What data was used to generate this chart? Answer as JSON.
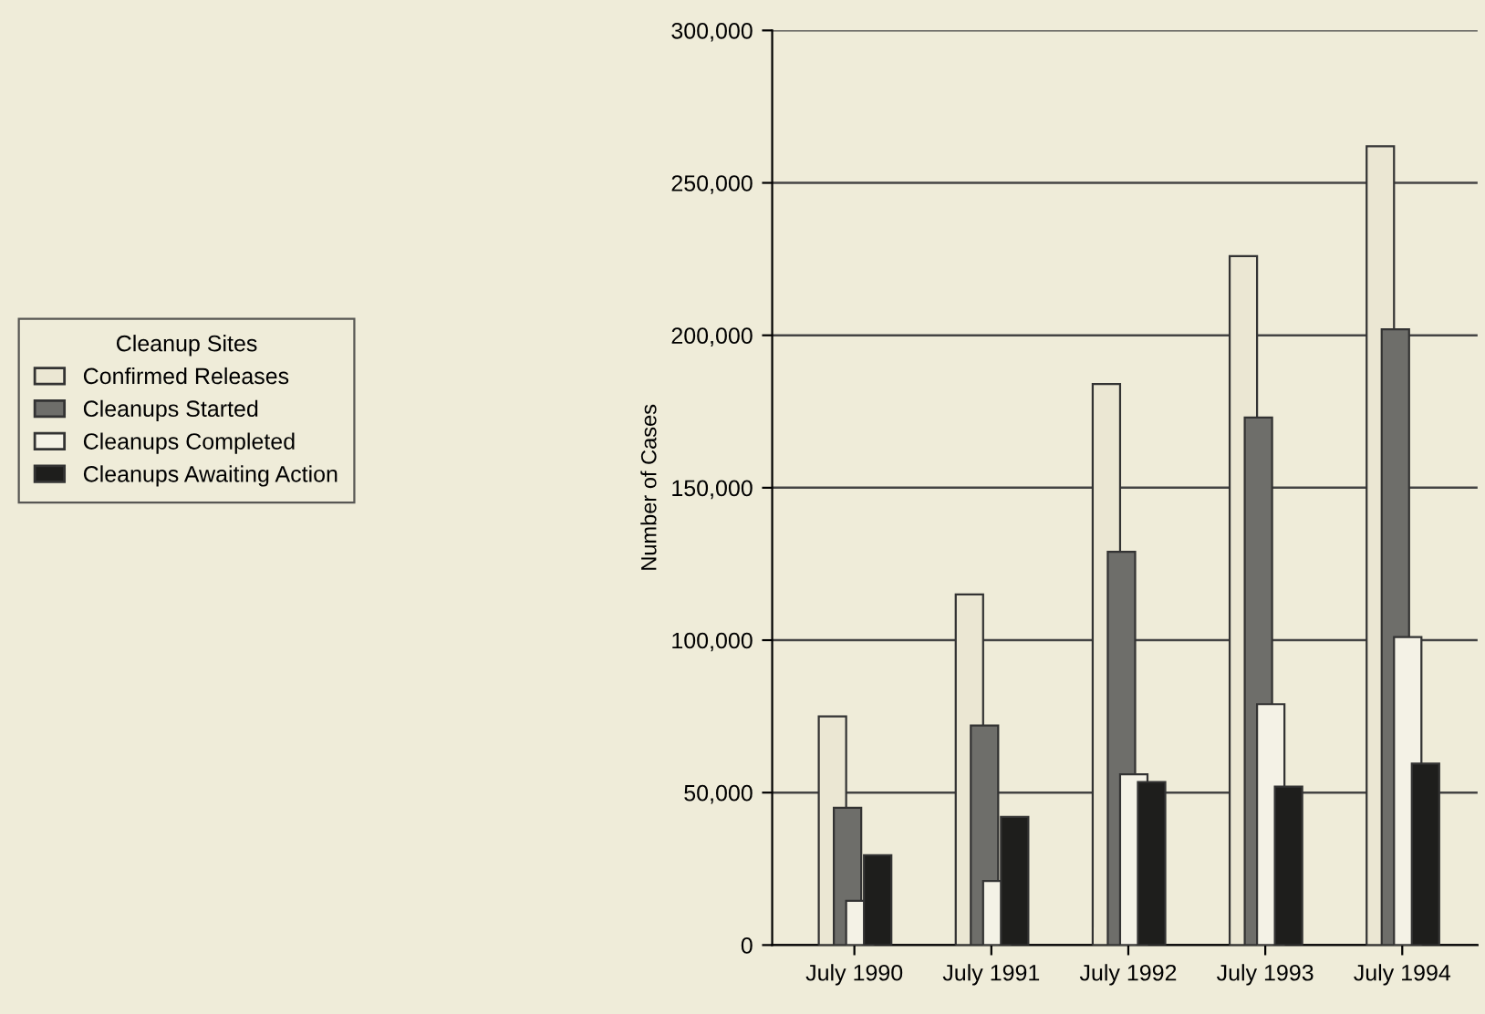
{
  "chart_data": {
    "type": "bar",
    "ylabel": "Number of Cases",
    "legend_title": "Cleanup Sites",
    "legend": "left",
    "categories": [
      "July 1990",
      "July 1991",
      "July 1992",
      "July 1993",
      "July 1994"
    ],
    "series": [
      {
        "name": "Confirmed Releases",
        "color": "#ebe7d3",
        "values": [
          75000,
          115000,
          184000,
          226000,
          262000
        ]
      },
      {
        "name": "Cleanups Started",
        "color": "#6e6e6a",
        "values": [
          45000,
          72000,
          129000,
          173000,
          202000
        ]
      },
      {
        "name": "Cleanups Completed",
        "color": "#f4f2e6",
        "values": [
          14500,
          21000,
          56000,
          79000,
          101000
        ]
      },
      {
        "name": "Cleanups Awaiting Action",
        "color": "#1e1e1c",
        "values": [
          29500,
          42000,
          53500,
          52000,
          59500
        ]
      }
    ],
    "ylim": [
      0,
      300000
    ],
    "yticks": [
      {
        "value": 0,
        "label": "0"
      },
      {
        "value": 50000,
        "label": "50,000"
      },
      {
        "value": 100000,
        "label": "100,000"
      },
      {
        "value": 150000,
        "label": "150,000"
      },
      {
        "value": 200000,
        "label": "200,000"
      },
      {
        "value": 250000,
        "label": "250,000"
      },
      {
        "value": 300000,
        "label": "300,000"
      }
    ],
    "grid": "y"
  }
}
